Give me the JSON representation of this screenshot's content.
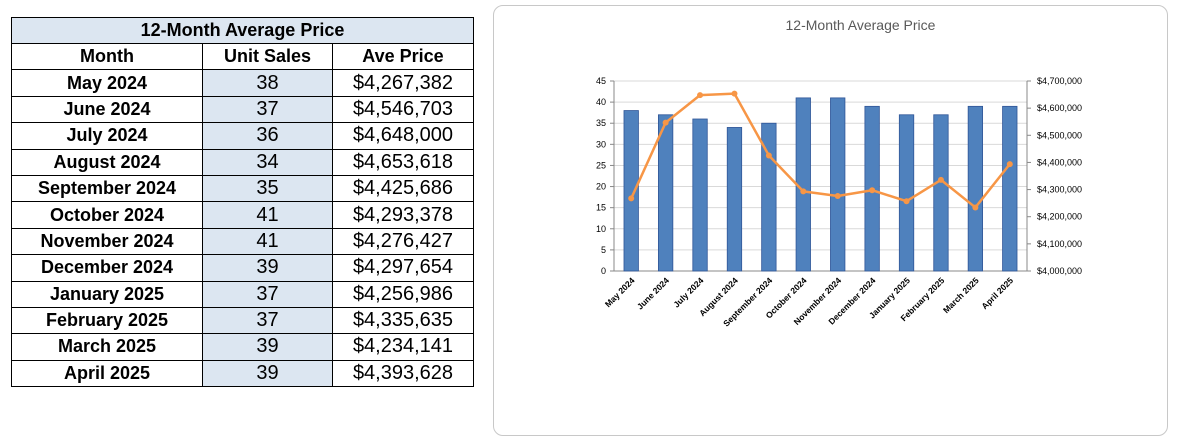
{
  "table": {
    "title": "12-Month Average Price",
    "headers": {
      "month": "Month",
      "units": "Unit Sales",
      "price": "Ave Price"
    },
    "rows": [
      {
        "month": "May 2024",
        "units": "38",
        "price": "$4,267,382"
      },
      {
        "month": "June 2024",
        "units": "37",
        "price": "$4,546,703"
      },
      {
        "month": "July 2024",
        "units": "36",
        "price": "$4,648,000"
      },
      {
        "month": "August 2024",
        "units": "34",
        "price": "$4,653,618"
      },
      {
        "month": "September 2024",
        "units": "35",
        "price": "$4,425,686"
      },
      {
        "month": "October 2024",
        "units": "41",
        "price": "$4,293,378"
      },
      {
        "month": "November 2024",
        "units": "41",
        "price": "$4,276,427"
      },
      {
        "month": "December 2024",
        "units": "39",
        "price": "$4,297,654"
      },
      {
        "month": "January 2025",
        "units": "37",
        "price": "$4,256,986"
      },
      {
        "month": "February 2025",
        "units": "37",
        "price": "$4,335,635"
      },
      {
        "month": "March 2025",
        "units": "39",
        "price": "$4,234,141"
      },
      {
        "month": "April 2025",
        "units": "39",
        "price": "$4,393,628"
      }
    ]
  },
  "chart_data": {
    "type": "bar",
    "title": "12-Month Average Price",
    "categories": [
      "May 2024",
      "June 2024",
      "July 2024",
      "August 2024",
      "September 2024",
      "October 2024",
      "November 2024",
      "December 2024",
      "January 2025",
      "February 2025",
      "March 2025",
      "April 2025"
    ],
    "series": [
      {
        "type": "bar",
        "axis": "left",
        "color": "#4f81bd",
        "values": [
          38,
          37,
          36,
          34,
          35,
          41,
          41,
          39,
          37,
          37,
          39,
          39
        ]
      },
      {
        "type": "line",
        "axis": "right",
        "color": "#f79646",
        "values": [
          4267382,
          4546703,
          4648000,
          4653618,
          4425686,
          4293378,
          4276427,
          4297654,
          4256986,
          4335635,
          4234141,
          4393628
        ]
      }
    ],
    "y_left": {
      "min": 0,
      "max": 45,
      "ticks": [
        "0",
        "5",
        "10",
        "15",
        "20",
        "25",
        "30",
        "35",
        "40",
        "45"
      ]
    },
    "y_right": {
      "min": 4000000,
      "max": 4700000,
      "ticks": [
        "$4,000,000",
        "$4,100,000",
        "$4,200,000",
        "$4,300,000",
        "$4,400,000",
        "$4,500,000",
        "$4,600,000",
        "$4,700,000"
      ]
    },
    "grid": true,
    "legend": "none"
  }
}
